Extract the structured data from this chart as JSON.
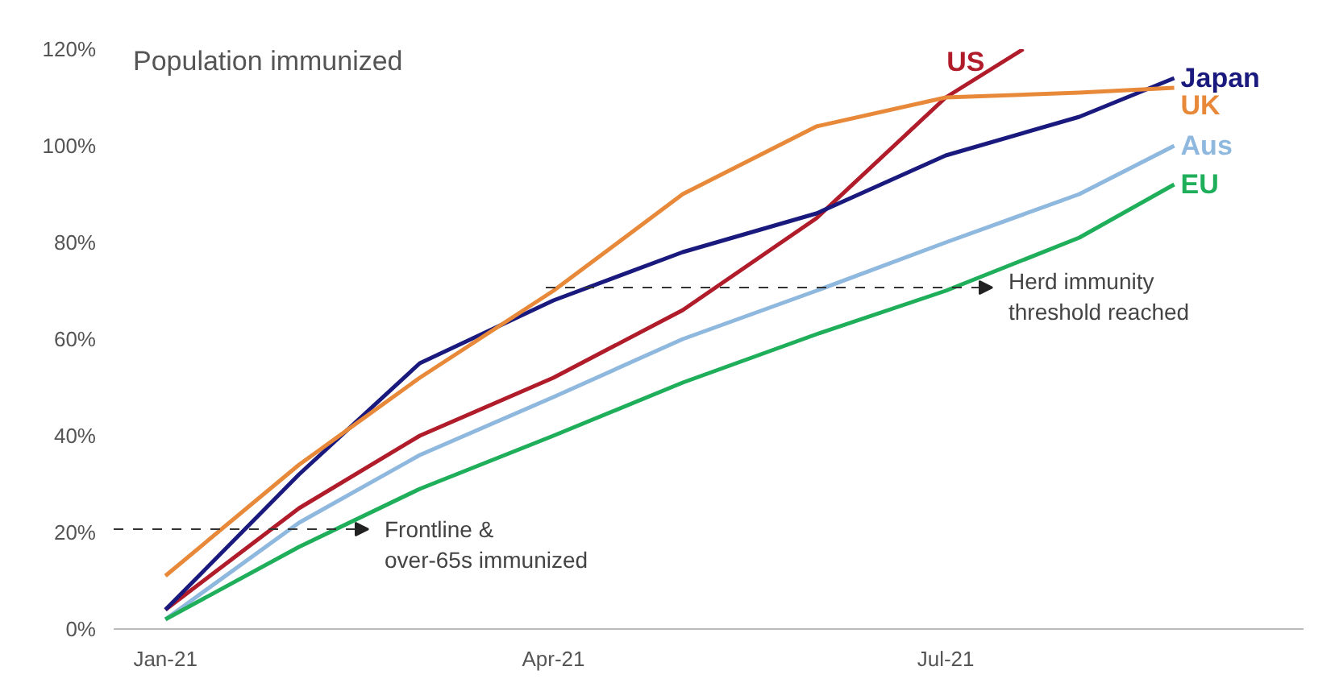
{
  "chart_data": {
    "type": "line",
    "title": "Population immunized",
    "x": [
      "2021-01-01",
      "2021-02-01",
      "2021-03-01",
      "2021-04-01",
      "2021-05-01",
      "2021-06-01",
      "2021-07-01",
      "2021-08-01",
      "2021-08-23"
    ],
    "series": [
      {
        "name": "US",
        "color": "#b01c2a",
        "x": [
          "2021-01-01",
          "2021-02-01",
          "2021-03-01",
          "2021-04-01",
          "2021-05-01",
          "2021-06-01",
          "2021-07-01",
          "2021-07-19"
        ],
        "values": [
          4,
          25,
          40,
          52,
          66,
          85,
          110,
          120
        ]
      },
      {
        "name": "Japan",
        "color": "#1a1a7e",
        "values": [
          4,
          32,
          55,
          68,
          78,
          86,
          98,
          106,
          114
        ]
      },
      {
        "name": "UK",
        "color": "#e8893a",
        "values": [
          11,
          34,
          52,
          70,
          90,
          104,
          110,
          111,
          112
        ]
      },
      {
        "name": "Aus",
        "color": "#8fb8de",
        "values": [
          2,
          22,
          36,
          48,
          60,
          70,
          80,
          90,
          100
        ]
      },
      {
        "name": "EU",
        "color": "#1fae5a",
        "values": [
          2,
          17,
          29,
          40,
          51,
          61,
          70,
          81,
          92
        ]
      }
    ],
    "annotations": [
      "Frontline & over-65s immunized",
      "Herd immunity threshold reached"
    ],
    "xlim": [
      "2020-12-20",
      "2021-09-22"
    ],
    "xticks": [
      {
        "value": "2021-01-01",
        "label": "Jan-21"
      },
      {
        "value": "2021-04-01",
        "label": "Apr-21"
      },
      {
        "value": "2021-07-01",
        "label": "Jul-21"
      }
    ],
    "ylim": [
      0,
      120
    ],
    "yticks": [
      {
        "value": 0,
        "label": "0%"
      },
      {
        "value": 20,
        "label": "20%"
      },
      {
        "value": 40,
        "label": "40%"
      },
      {
        "value": 60,
        "label": "60%"
      },
      {
        "value": 80,
        "label": "80%"
      },
      {
        "value": 100,
        "label": "100%"
      },
      {
        "value": 120,
        "label": "120%"
      }
    ],
    "grid": false,
    "marker": "none",
    "line_style": "solid"
  }
}
